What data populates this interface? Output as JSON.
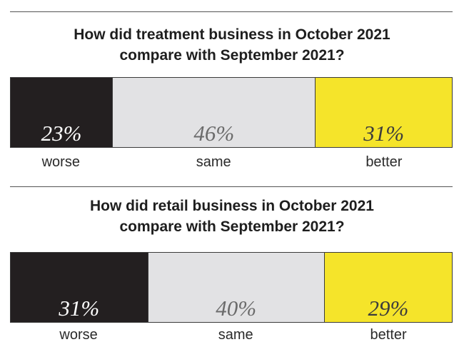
{
  "chart_data": [
    {
      "type": "bar",
      "orientation": "horizontal",
      "stacked": true,
      "title": [
        "How did treatment business in October 2021",
        "compare with September 2021?"
      ],
      "categories": [
        "worse",
        "same",
        "better"
      ],
      "values": [
        23,
        46,
        31
      ],
      "value_labels": [
        "23%",
        "46%",
        "31%"
      ],
      "unit": "%",
      "colors": [
        "#231f20",
        "#e2e2e4",
        "#f5e42a"
      ],
      "label_colors": [
        "#ffffff",
        "#6b6b6b",
        "#3c3c3c"
      ],
      "legend": "below",
      "grid": false
    },
    {
      "type": "bar",
      "orientation": "horizontal",
      "stacked": true,
      "title": [
        "How did retail business in October 2021",
        "compare with September 2021?"
      ],
      "categories": [
        "worse",
        "same",
        "better"
      ],
      "values": [
        31,
        40,
        29
      ],
      "value_labels": [
        "31%",
        "40%",
        "29%"
      ],
      "unit": "%",
      "colors": [
        "#231f20",
        "#e2e2e4",
        "#f5e42a"
      ],
      "label_colors": [
        "#ffffff",
        "#6b6b6b",
        "#3c3c3c"
      ],
      "legend": "below",
      "grid": false
    }
  ]
}
